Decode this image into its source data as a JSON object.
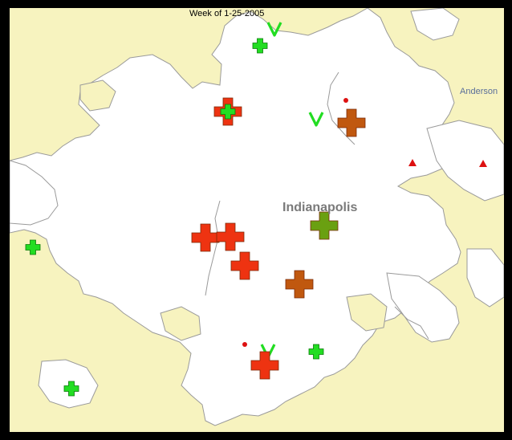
{
  "header": {
    "week_label": "Week of 1-25-2005"
  },
  "labels": {
    "city_main": "Indianapolis",
    "city_secondary": "Anderson"
  },
  "colors": {
    "background_land": "#f7f3bf",
    "urban_area": "#ffffff",
    "boundary": "#9a9a9a",
    "frame": "#000000"
  },
  "markers": [
    {
      "symbol": "cross",
      "size": "small",
      "color": "#22dd22"
    },
    {
      "symbol": "check",
      "size": "small",
      "color": "#22dd22"
    },
    {
      "symbol": "cross",
      "size": "large",
      "color": "#ee3311",
      "inner_symbol": "cross",
      "inner_color": "#22dd22"
    },
    {
      "symbol": "check",
      "size": "small",
      "color": "#22dd22"
    },
    {
      "symbol": "cross",
      "size": "large",
      "color": "#c0580f"
    },
    {
      "symbol": "dot",
      "size": "small",
      "color": "#dd1111"
    },
    {
      "symbol": "triangle",
      "size": "small",
      "color": "#dd1111"
    },
    {
      "symbol": "triangle",
      "size": "small",
      "color": "#dd1111"
    },
    {
      "symbol": "cross",
      "size": "large",
      "color": "#6aa011"
    },
    {
      "symbol": "cross",
      "size": "small",
      "color": "#22dd22"
    },
    {
      "symbol": "cross",
      "size": "large",
      "color": "#ee3311"
    },
    {
      "symbol": "cross",
      "size": "large",
      "color": "#ee3311"
    },
    {
      "symbol": "cross",
      "size": "large",
      "color": "#ee3311"
    },
    {
      "symbol": "cross",
      "size": "large",
      "color": "#c0580f"
    },
    {
      "symbol": "dot",
      "size": "small",
      "color": "#dd1111"
    },
    {
      "symbol": "check",
      "size": "small",
      "color": "#22dd22"
    },
    {
      "symbol": "cross",
      "size": "large",
      "color": "#ee3311"
    },
    {
      "symbol": "cross",
      "size": "small",
      "color": "#22dd22"
    },
    {
      "symbol": "cross",
      "size": "small",
      "color": "#22dd22"
    }
  ]
}
